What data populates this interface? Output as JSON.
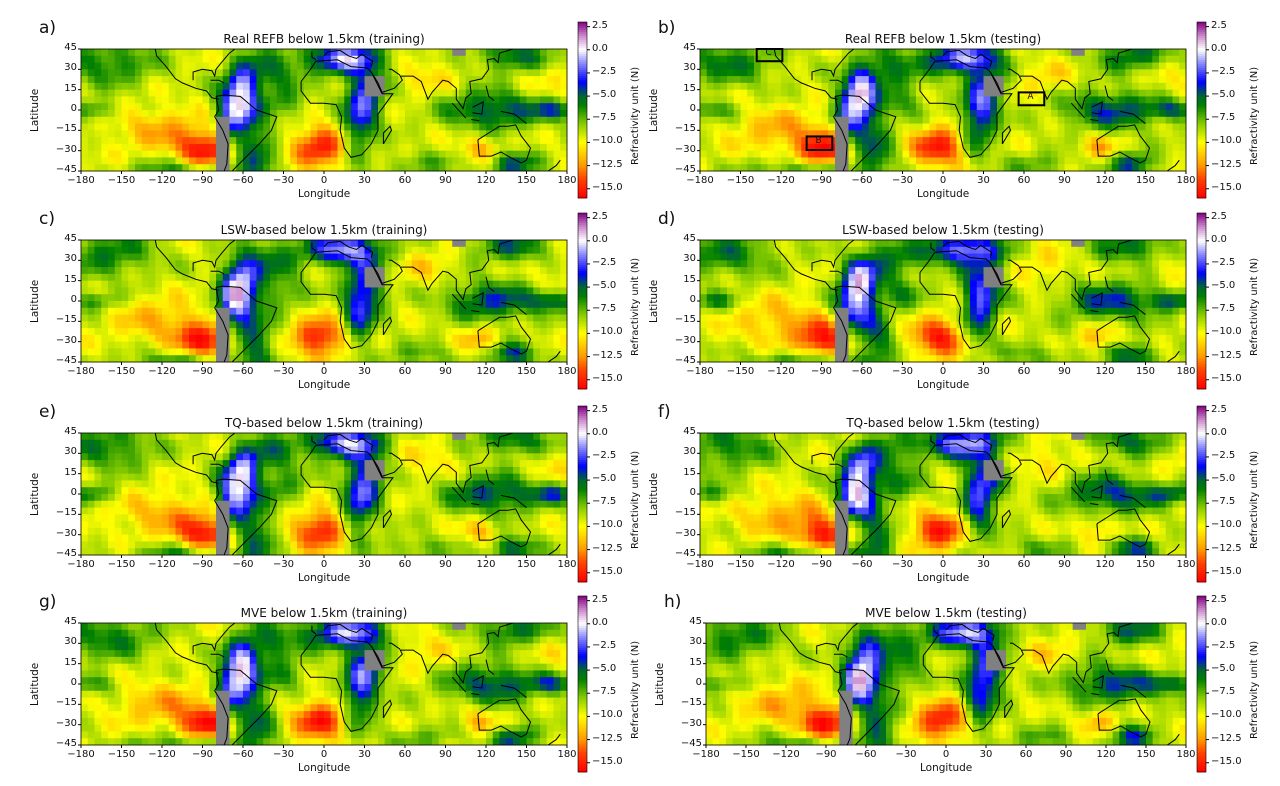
{
  "chart_data": {
    "type": "heatmap",
    "colorbar": {
      "label": "Refractivity unit (N)",
      "range": [
        -16,
        3
      ],
      "ticks": [
        "2.5",
        "0.0",
        "−2.5",
        "−5.0",
        "−7.5",
        "−10.0",
        "−12.5",
        "−15.0"
      ],
      "tick_values": [
        2.5,
        0,
        -2.5,
        -5,
        -7.5,
        -10,
        -12.5,
        -15
      ],
      "stops": [
        [
          -16,
          "#ff0000"
        ],
        [
          -14,
          "#ff4000"
        ],
        [
          -12.5,
          "#ff9900"
        ],
        [
          -10,
          "#ffff00"
        ],
        [
          -8,
          "#88cc00"
        ],
        [
          -6,
          "#008000"
        ],
        [
          -5,
          "#006633"
        ],
        [
          -3.5,
          "#0000ff"
        ],
        [
          -1.5,
          "#8888ff"
        ],
        [
          0,
          "#ffffff"
        ],
        [
          1.5,
          "#cc88cc"
        ],
        [
          3,
          "#800080"
        ]
      ]
    },
    "xlabel": "Longitude",
    "ylabel": "Latitude",
    "xlim": [
      -180,
      180
    ],
    "ylim": [
      -45,
      45
    ],
    "xticks": [
      "−180",
      "−150",
      "−120",
      "−90",
      "−60",
      "−30",
      "0",
      "30",
      "60",
      "90",
      "120",
      "150",
      "180"
    ],
    "xtick_values": [
      -180,
      -150,
      -120,
      -90,
      -60,
      -30,
      0,
      30,
      60,
      90,
      120,
      150,
      180
    ],
    "yticks": [
      "45",
      "30",
      "15",
      "0",
      "−15",
      "−30",
      "−45"
    ],
    "ytick_values": [
      45,
      30,
      15,
      0,
      -15,
      -30,
      -45
    ],
    "mask_color": "#808080",
    "panels": [
      {
        "label": "a)",
        "title": "Real REFB below 1.5km (training)",
        "seed": 0.0,
        "boxes": []
      },
      {
        "label": "b)",
        "title": "Real REFB below 1.5km (testing)",
        "seed": 1.3,
        "boxes": [
          {
            "text": "C",
            "lon": [
              -138,
              -119
            ],
            "lat": [
              36,
              45
            ]
          },
          {
            "text": "B",
            "lon": [
              -101,
              -82
            ],
            "lat": [
              -29.5,
              -19.5
            ]
          },
          {
            "text": "A",
            "lon": [
              56,
              75
            ],
            "lat": [
              3.5,
              13
            ]
          }
        ]
      },
      {
        "label": "c)",
        "title": "LSW-based below 1.5km (training)",
        "seed": 2.1,
        "boxes": []
      },
      {
        "label": "d)",
        "title": "LSW-based below 1.5km (testing)",
        "seed": 2.9,
        "boxes": []
      },
      {
        "label": "e)",
        "title": "TQ-based below 1.5km (training)",
        "seed": 3.7,
        "boxes": []
      },
      {
        "label": "f)",
        "title": "TQ-based below 1.5km (testing)",
        "seed": 4.4,
        "boxes": []
      },
      {
        "label": "g)",
        "title": "MVE below 1.5km (training)",
        "seed": 5.2,
        "boxes": []
      },
      {
        "label": "h)",
        "title": "MVE below 1.5km (testing)",
        "seed": 6.0,
        "boxes": []
      }
    ]
  }
}
